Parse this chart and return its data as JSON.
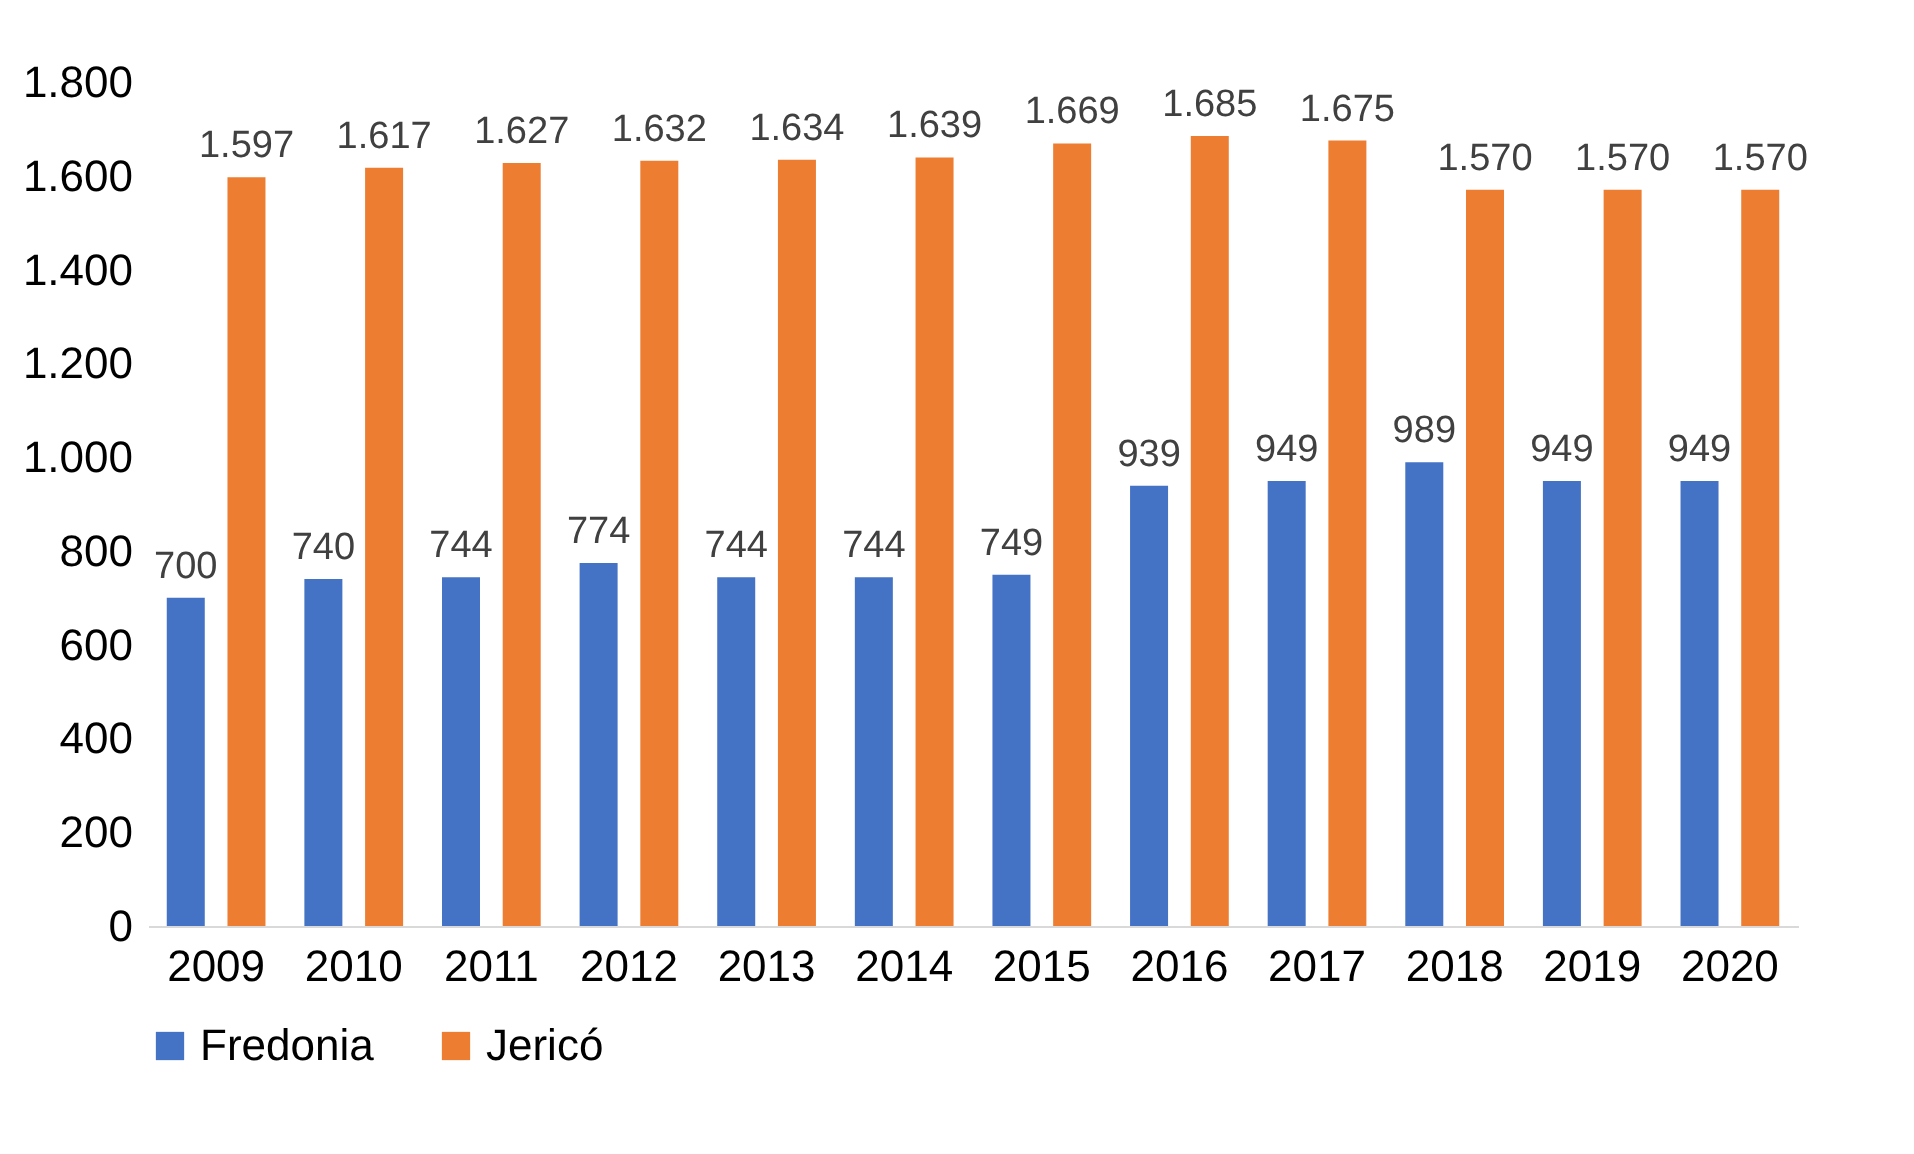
{
  "chart_data": {
    "type": "bar",
    "categories": [
      "2009",
      "2010",
      "2011",
      "2012",
      "2013",
      "2014",
      "2015",
      "2016",
      "2017",
      "2018",
      "2019",
      "2020"
    ],
    "series": [
      {
        "name": "Fredonia",
        "color": "#4472c4",
        "values": [
          700,
          740,
          744,
          774,
          744,
          744,
          749,
          939,
          949,
          989,
          949,
          949
        ],
        "value_labels": [
          "700",
          "740",
          "744",
          "774",
          "744",
          "744",
          "749",
          "939",
          "949",
          "989",
          "949",
          "949"
        ]
      },
      {
        "name": "Jericó",
        "color": "#ed7d31",
        "values": [
          1597,
          1617,
          1627,
          1632,
          1634,
          1639,
          1669,
          1685,
          1675,
          1570,
          1570,
          1570
        ],
        "value_labels": [
          "1.597",
          "1.617",
          "1.627",
          "1.632",
          "1.634",
          "1.639",
          "1.669",
          "1.685",
          "1.675",
          "1.570",
          "1.570",
          "1.570"
        ]
      }
    ],
    "ylim": [
      0,
      1800
    ],
    "yticks": [
      0,
      200,
      400,
      600,
      800,
      {
        "value": 1000,
        "label": "1.000"
      },
      {
        "value": 1200,
        "label": "1.200"
      },
      {
        "value": 1400,
        "label": "1.400"
      },
      {
        "value": 1600,
        "label": "1.600"
      },
      {
        "value": 1800,
        "label": "1.800"
      }
    ],
    "grid": false,
    "legend": "bottom"
  }
}
